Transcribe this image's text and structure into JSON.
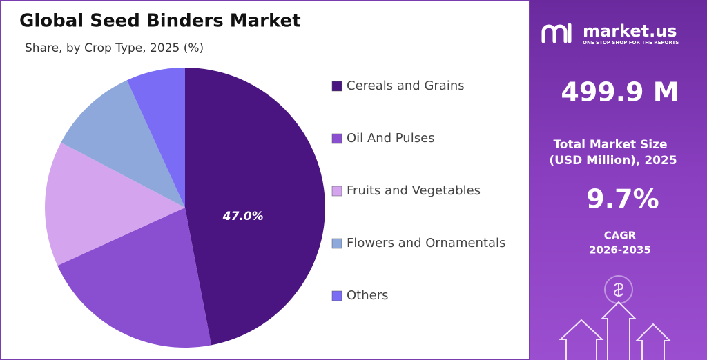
{
  "chart_data": {
    "type": "pie",
    "title": "Global Seed Binders Market",
    "subtitle": "Share, by Crop Type, 2025 (%)",
    "categories": [
      "Cereals and Grains",
      "Oil And Pulses",
      "Fruits and Vegetables",
      "Flowers and Ornamentals",
      "Others"
    ],
    "values": [
      47.0,
      21.2,
      14.5,
      10.5,
      6.8
    ],
    "value_labels": [
      "47.0%",
      null,
      null,
      null,
      null
    ],
    "colors": [
      "#4a1580",
      "#8a4fd0",
      "#d4a5ee",
      "#8fa8dc",
      "#7b6cf5"
    ],
    "legend": "right"
  },
  "panel": {
    "brand": "market.us",
    "tagline": "ONE STOP SHOP FOR THE REPORTS",
    "market_size": "499.9 M",
    "market_size_label": [
      "Total Market Size",
      "(USD Million), 2025"
    ],
    "cagr": "9.7%",
    "cagr_label": [
      "CAGR",
      "2026-2035"
    ]
  }
}
